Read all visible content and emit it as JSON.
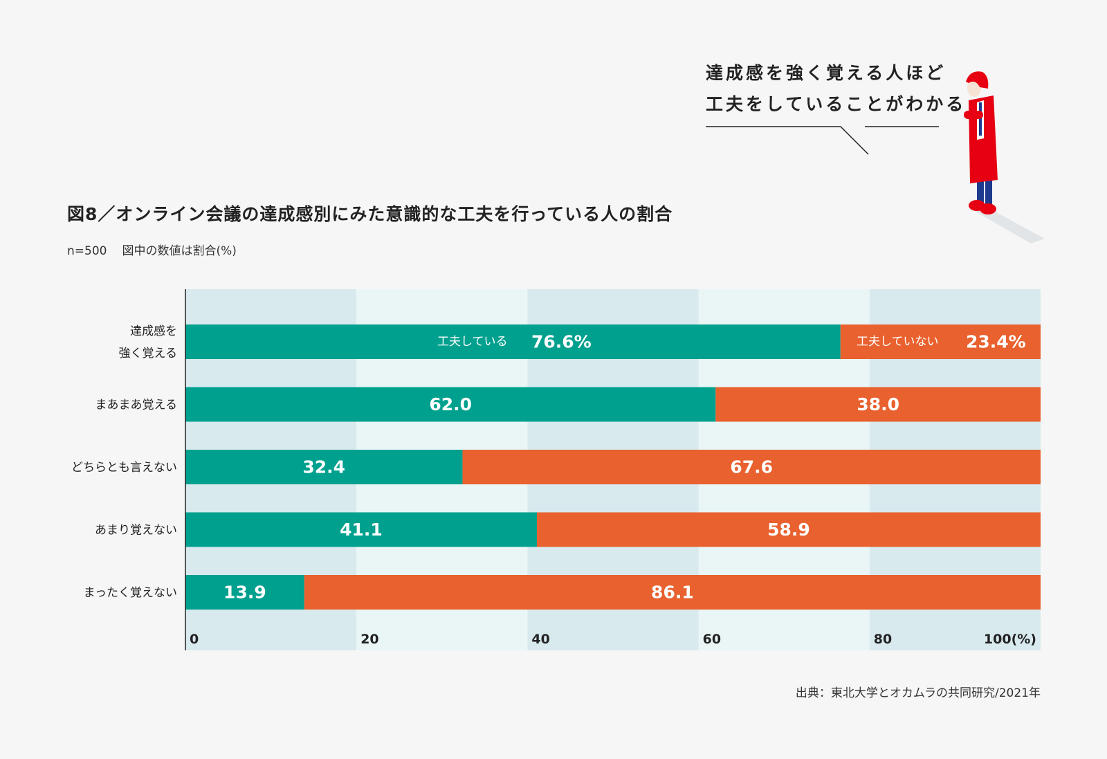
{
  "callout": {
    "line1": "達成感を強く覚える人ほど",
    "line2": "工夫をしていることがわかる"
  },
  "header": {
    "title": "図8／オンライン会議の達成感別にみた意識的な工夫を行っている人の割合",
    "sample": "n=500",
    "note": "図中の数値は割合(%)"
  },
  "source": "出典：東北大学とオカムラの共同研究/2021年",
  "colors": {
    "background": "#f6f6f6",
    "band_dark": "#d8eaee",
    "band_light": "#eaf6f6",
    "teal": "#00a08e",
    "orange": "#e8612f",
    "figure_red": "#e60012",
    "figure_blue": "#1d3a8f"
  },
  "chart_data": {
    "type": "bar",
    "orientation": "horizontal",
    "stacked": true,
    "title": "図8／オンライン会議の達成感別にみた意識的な工夫を行っている人の割合",
    "subtitle": "n=500　図中の数値は割合(%)",
    "categories": [
      [
        "達成感を",
        "強く覚える"
      ],
      [
        "まあまあ覚える"
      ],
      [
        "どちらとも言えない"
      ],
      [
        "あまり覚えない"
      ],
      [
        "まったく覚えない"
      ]
    ],
    "series": [
      {
        "name": "工夫している",
        "color": "#00a08e",
        "values": [
          76.6,
          62.0,
          32.4,
          41.1,
          13.9
        ],
        "labels": [
          "76.6%",
          "62.0",
          "32.4",
          "41.1",
          "13.9"
        ]
      },
      {
        "name": "工夫していない",
        "color": "#e8612f",
        "values": [
          23.4,
          38.0,
          67.6,
          58.9,
          86.1
        ],
        "labels": [
          "23.4%",
          "38.0",
          "67.6",
          "58.9",
          "86.1"
        ]
      }
    ],
    "xlim": [
      0,
      100
    ],
    "xticks": [
      0,
      20,
      40,
      60,
      80,
      100
    ],
    "xtick_labels": [
      "0",
      "20",
      "40",
      "60",
      "80",
      "100(%)"
    ],
    "xlabel": "",
    "ylabel": "",
    "grid": "alternating vertical bands every 20",
    "legend": "inline in first bar"
  }
}
